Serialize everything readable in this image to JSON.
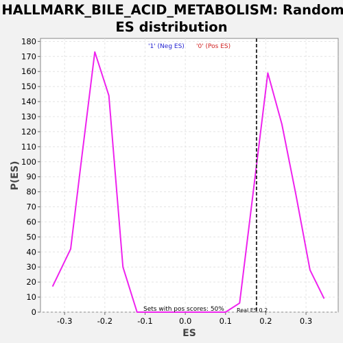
{
  "chart_data": {
    "type": "line",
    "title_lines": [
      "HALLMARK_BILE_ACID_METABOLISM: Random",
      "ES distribution"
    ],
    "xlabel": "ES",
    "ylabel": "P(ES)",
    "xlim": [
      -0.36,
      0.38
    ],
    "ylim": [
      0,
      182
    ],
    "x_ticks": [
      -0.3,
      -0.2,
      -0.1,
      0.0,
      0.1,
      0.2,
      0.3
    ],
    "x_tick_labels": [
      "-0.3",
      "-0.2",
      "-0.1",
      "0.0",
      "0.1",
      "0.2",
      "0.3"
    ],
    "y_ticks": [
      0,
      10,
      20,
      30,
      40,
      50,
      60,
      70,
      80,
      90,
      100,
      110,
      120,
      130,
      140,
      150,
      160,
      170,
      180
    ],
    "y_tick_labels": [
      "0",
      "10",
      "20",
      "30",
      "40",
      "50",
      "60",
      "70",
      "80",
      "90",
      "100",
      "110",
      "120",
      "130",
      "140",
      "150",
      "160",
      "170",
      "180"
    ],
    "grid": true,
    "legend": [
      {
        "label": "'1' (Neg ES)",
        "color": "#2020d0"
      },
      {
        "label": "'0' (Pos ES)",
        "color": "#d02020"
      }
    ],
    "series": [
      {
        "color": "#ee22ee",
        "x": [
          -0.33,
          -0.285,
          -0.26,
          -0.225,
          -0.19,
          -0.155,
          -0.12,
          -0.1,
          0.1,
          0.135,
          0.205,
          0.24,
          0.275,
          0.31,
          0.345
        ],
        "y": [
          17,
          42,
          97,
          173,
          144,
          30,
          0,
          0,
          0,
          6,
          159,
          125,
          78,
          28,
          9
        ]
      }
    ],
    "reference_line": {
      "x": 0.177,
      "label": "Real ES 0.2",
      "style": "dashed",
      "color": "#333333"
    },
    "annotations": {
      "pos_scores": "Sets with pos scores: 50%"
    }
  }
}
